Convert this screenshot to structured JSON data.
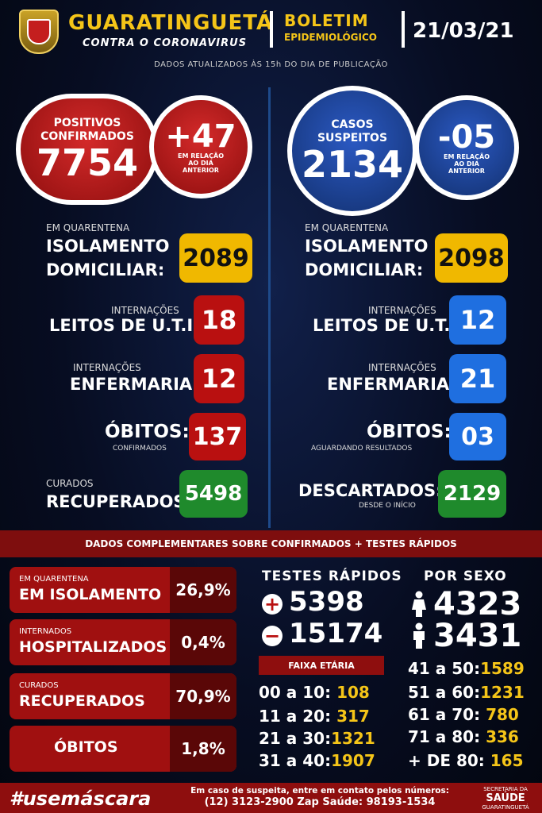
{
  "header": {
    "city": "GUARATINGUETÁ",
    "subtitle": "CONTRA O CORONAVIRUS",
    "boletim": "BOLETIM",
    "epidemiologico": "EPIDEMIOLÓGICO",
    "date": "21/03/21",
    "updated": "DADOS ATUALIZADOS ÀS 15h DO DIA DE PUBLICAÇÃO"
  },
  "left": {
    "main_line1": "POSITIVOS",
    "main_line2": "CONFIRMADOS",
    "main_value": "7754",
    "delta": "+47",
    "delta_cap1": "EM RELAÇÃO",
    "delta_cap2": "AO DIA",
    "delta_cap3": "ANTERIOR",
    "quarantine_small": "EM QUARENTENA",
    "isolation_l1": "ISOLAMENTO",
    "isolation_l2": "DOMICILIAR:",
    "isolation_value": "2089",
    "uti_small": "INTERNAÇÕES",
    "uti_label": "LEITOS DE U.T.I:",
    "uti_value": "18",
    "enf_small": "INTERNAÇÕES",
    "enf_label": "ENFERMARIA:",
    "enf_value": "12",
    "obitos_label": "ÓBITOS:",
    "obitos_sub": "CONFIRMADOS",
    "obitos_value": "137",
    "cured_small": "CURADOS",
    "cured_label": "RECUPERADOS:",
    "cured_value": "5498"
  },
  "right": {
    "main_line1": "CASOS",
    "main_line2": "SUSPEITOS",
    "main_value": "2134",
    "delta": "-05",
    "delta_cap1": "EM RELAÇÃO",
    "delta_cap2": "AO DIA",
    "delta_cap3": "ANTERIOR",
    "quarantine_small": "EM QUARENTENA",
    "isolation_l1": "ISOLAMENTO",
    "isolation_l2": "DOMICILIAR:",
    "isolation_value": "2098",
    "uti_small": "INTERNAÇÕES",
    "uti_label": "LEITOS DE U.T.I:",
    "uti_value": "12",
    "enf_small": "INTERNAÇÕES",
    "enf_label": "ENFERMARIA:",
    "enf_value": "21",
    "obitos_label": "ÓBITOS:",
    "obitos_sub": "AGUARDANDO RESULTADOS",
    "obitos_value": "03",
    "disc_label": "DESCARTADOS:",
    "disc_sub": "DESDE O INÍCIO",
    "disc_value": "2129"
  },
  "complement": {
    "banner": "DADOS COMPLEMENTARES SOBRE CONFIRMADOS + TESTES RÁPIDOS",
    "cards": [
      {
        "small": "EM QUARENTENA",
        "big": "EM ISOLAMENTO",
        "pct": "26,9%"
      },
      {
        "small": "INTERNADOS",
        "big": "HOSPITALIZADOS",
        "pct": "0,4%"
      },
      {
        "small": "CURADOS",
        "big": "RECUPERADOS",
        "pct": "70,9%"
      },
      {
        "small": "",
        "big": "ÓBITOS",
        "pct": "1,8%"
      }
    ],
    "tests_title": "TESTES RÁPIDOS",
    "tests_pos": "5398",
    "tests_neg": "15174",
    "sex_title": "POR SEXO",
    "female": "4323",
    "male": "3431",
    "faixa_title": "FAIXA ETÁRIA",
    "ages_left": [
      {
        "range": "00 a 10:",
        "value": "108"
      },
      {
        "range": "11 a 20:",
        "value": "317"
      },
      {
        "range": "21 a 30:",
        "value": "1321"
      },
      {
        "range": "31 a 40:",
        "value": "1907"
      }
    ],
    "ages_right": [
      {
        "range": "41 a 50:",
        "value": "1589"
      },
      {
        "range": "51 a 60:",
        "value": "1231"
      },
      {
        "range": "61 a 70:",
        "value": "780"
      },
      {
        "range": "71 a 80:",
        "value": "336"
      },
      {
        "range": "+ DE 80:",
        "value": "165"
      }
    ]
  },
  "footer": {
    "hashtag": "#usemáscara",
    "contact1": "Em caso de suspeita, entre em contato pelos números:",
    "contact2": "(12) 3123-2900 Zap Saúde: 98193-1534",
    "sec1": "SECRETARIA DA",
    "sec2": "SAÚDE",
    "sec3": "GUARATINGUETÁ"
  }
}
